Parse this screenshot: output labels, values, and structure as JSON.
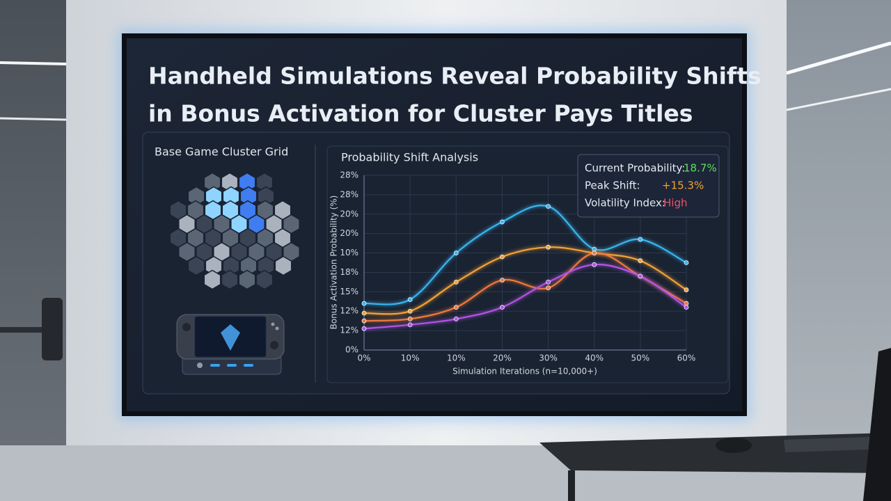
{
  "header": {
    "title_lines": [
      "Handheld Simulations Reveal Probability Shifts",
      "in Bonus Activation for Cluster Pays Titles"
    ]
  },
  "left_panel": {
    "title": "Base Game Cluster Grid"
  },
  "chart_data": {
    "type": "line",
    "title": "Probability Shift Analysis",
    "x_label": "Simulation Iterations (n=10,000+)",
    "y_label": "Bonus Activation Probability (%)",
    "categories": [
      "0%",
      "10%",
      "10%",
      "20%",
      "30%",
      "40%",
      "50%",
      "60%"
    ],
    "ylim": [
      0,
      9
    ],
    "yticks": [
      {
        "value": 0,
        "label": "0%"
      },
      {
        "value": 1,
        "label": "12%"
      },
      {
        "value": 2,
        "label": "12%"
      },
      {
        "value": 3,
        "label": "15%"
      },
      {
        "value": 4,
        "label": "18%"
      },
      {
        "value": 5,
        "label": "10%"
      },
      {
        "value": 6,
        "label": "20%"
      },
      {
        "value": 7,
        "label": "20%"
      },
      {
        "value": 8,
        "label": "28%"
      },
      {
        "value": 9,
        "label": "28%"
      }
    ],
    "grid": true,
    "series": [
      {
        "color": "#38b6f2",
        "values": [
          2.4,
          2.6,
          5.0,
          6.6,
          7.4,
          5.2,
          5.7,
          4.5
        ]
      },
      {
        "color": "#f5a236",
        "values": [
          1.9,
          2.0,
          3.5,
          4.8,
          5.3,
          5.0,
          4.6,
          3.1
        ]
      },
      {
        "color": "#f07a3a",
        "values": [
          1.5,
          1.6,
          2.2,
          3.6,
          3.2,
          5.0,
          3.8,
          2.4
        ]
      },
      {
        "color": "#b454e6",
        "values": [
          1.1,
          1.3,
          1.6,
          2.2,
          3.5,
          4.4,
          3.8,
          2.2
        ]
      }
    ],
    "annotations": [
      {
        "label": "Current Probability:",
        "value": "18.7%",
        "color": "#5ee05a"
      },
      {
        "label": "Peak Shift:",
        "value": "+15.3%",
        "color": "#f5a236"
      },
      {
        "label": "Volatility Index:",
        "value": "High",
        "color": "#f0506a"
      }
    ]
  }
}
